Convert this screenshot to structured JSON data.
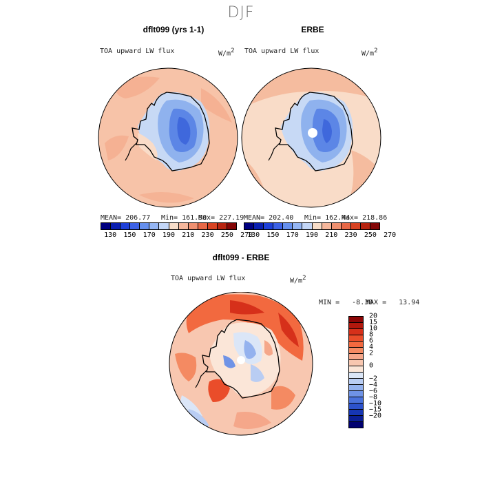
{
  "figure": {
    "season": "DJF"
  },
  "panels": [
    {
      "title": "dflt099 (yrs 1-1)",
      "variable": "TOA upward LW flux",
      "units_base": "W/m",
      "units_exp": "2",
      "stats": {
        "mean": "MEAN= 206.77",
        "min": "Min= 161.90",
        "max": "Max= 227.19"
      }
    },
    {
      "title": "ERBE",
      "variable": "TOA upward LW flux",
      "units_base": "W/m",
      "units_exp": "2",
      "stats": {
        "mean": "MEAN= 202.40",
        "min": "Min= 162.44",
        "max": "Max= 218.86"
      }
    },
    {
      "title": "dflt099 - ERBE",
      "variable": "TOA upward LW flux",
      "units_base": "W/m",
      "units_exp": "2",
      "stats": {
        "min": "MIN =   -8.30",
        "max": "MAX =   13.94"
      }
    }
  ],
  "colorbar_abs": {
    "colors": [
      "#000080",
      "#0a1fb0",
      "#1e40d8",
      "#3d62e6",
      "#6690ee",
      "#95b6f4",
      "#c3d6f7",
      "#f7ddc9",
      "#f5b79c",
      "#ef9070",
      "#e86846",
      "#d84322",
      "#b72410",
      "#830606"
    ],
    "tick_labels": [
      "130",
      "150",
      "170",
      "190",
      "210",
      "230",
      "250",
      "270"
    ]
  },
  "colorbar_diff": {
    "colors": [
      "#8b0606",
      "#b2180d",
      "#d6301a",
      "#ea4d2a",
      "#f2693f",
      "#f48a62",
      "#f5a78a",
      "#f8c7b0",
      "#fbe6d8",
      "#dbe6f7",
      "#b9cdf3",
      "#94b2ee",
      "#6f93e6",
      "#4a72dc",
      "#2c52cc",
      "#1636b4",
      "#0a1e95",
      "#000070"
    ],
    "tick_labels": [
      "20",
      "15",
      "10",
      "8",
      "6",
      "4",
      "2",
      "0",
      "−2",
      "−4",
      "−6",
      "−8",
      "−10",
      "−15",
      "−20"
    ]
  }
}
